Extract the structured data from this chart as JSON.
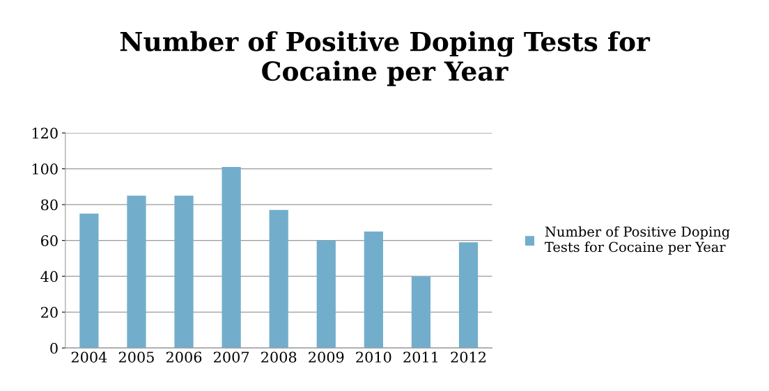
{
  "chart_data": {
    "type": "bar",
    "title": "Number of Positive Doping Tests for\nCocaine per Year",
    "categories": [
      "2004",
      "2005",
      "2006",
      "2007",
      "2008",
      "2009",
      "2010",
      "2011",
      "2012"
    ],
    "series": [
      {
        "name": "Number of Positive Doping\nTests for Cocaine per Year",
        "color": "#72aecb",
        "values": [
          75,
          85,
          85,
          101,
          77,
          60,
          65,
          40,
          59
        ]
      }
    ],
    "ylim": [
      0,
      120
    ],
    "yticks": [
      0,
      20,
      40,
      60,
      80,
      100,
      120
    ],
    "grid": "y",
    "legend": "right"
  }
}
